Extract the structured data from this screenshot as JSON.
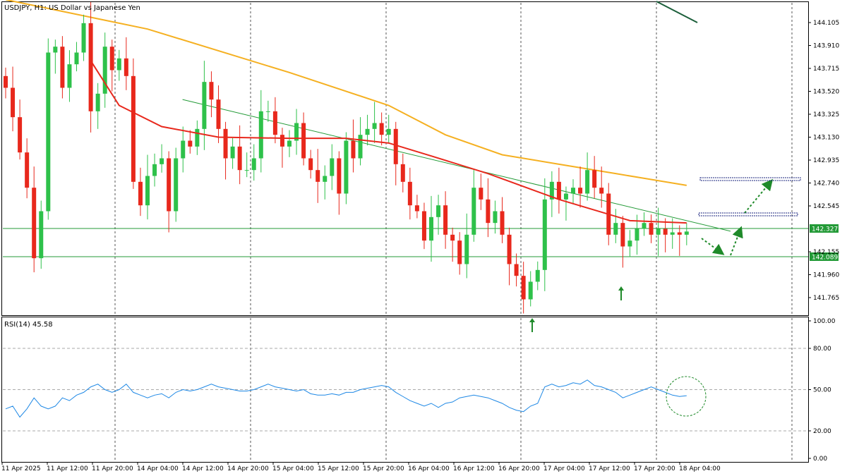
{
  "chart_data": [
    {
      "type": "candlestick",
      "title": "USDJPY, H1:  US Dollar vs Japanese Yen",
      "y_ticks": [
        "144.105",
        "143.910",
        "143.715",
        "143.520",
        "143.325",
        "143.130",
        "142.935",
        "142.740",
        "142.545",
        "142.155",
        "141.960",
        "141.765"
      ],
      "ylim": [
        141.62,
        144.26
      ],
      "x_ticks": [
        "11 Apr 2025",
        "11 Apr 12:00",
        "11 Apr 20:00",
        "14 Apr 04:00",
        "14 Apr 12:00",
        "14 Apr 20:00",
        "15 Apr 04:00",
        "15 Apr 12:00",
        "15 Apr 20:00",
        "16 Apr 04:00",
        "16 Apr 12:00",
        "16 Apr 20:00",
        "17 Apr 04:00",
        "17 Apr 12:00",
        "17 Apr 20:00",
        "18 Apr 04:00"
      ],
      "series_close": [
        143.55,
        143.3,
        143.0,
        142.7,
        142.1,
        142.5,
        143.85,
        143.9,
        143.55,
        143.75,
        143.85,
        144.1,
        143.35,
        143.5,
        143.9,
        143.7,
        143.8,
        143.65,
        142.75,
        142.55,
        142.8,
        142.9,
        142.95,
        142.5,
        142.95,
        143.1,
        143.05,
        143.2,
        143.6,
        143.45,
        143.2,
        142.95,
        143.05,
        142.85,
        142.85,
        142.95,
        143.35,
        143.35,
        143.15,
        143.05,
        143.1,
        143.25,
        142.95,
        142.85,
        142.75,
        142.8,
        142.95,
        142.65,
        143.1,
        142.95,
        143.15,
        143.2,
        143.25,
        143.15,
        143.2,
        142.9,
        142.75,
        142.55,
        142.5,
        142.25,
        142.45,
        142.55,
        142.3,
        142.25,
        142.05,
        142.3,
        142.7,
        142.6,
        142.4,
        142.5,
        142.3,
        142.05,
        141.95,
        141.75,
        141.9,
        142.0,
        142.6,
        142.75,
        142.6,
        142.65,
        142.7,
        142.65,
        142.85,
        142.7,
        142.65,
        142.3,
        142.4,
        142.2,
        142.25,
        142.35,
        142.4,
        142.3,
        142.35,
        142.3,
        142.32,
        142.3,
        142.327
      ],
      "hlines": [
        {
          "label": "142.327"
        },
        {
          "label": "142.089"
        }
      ],
      "ma_red": [
        [
          12,
          143.78
        ],
        [
          16,
          143.4
        ],
        [
          22,
          143.22
        ],
        [
          30,
          143.13
        ],
        [
          40,
          143.12
        ],
        [
          48,
          143.12
        ],
        [
          54,
          143.08
        ],
        [
          60,
          142.97
        ],
        [
          68,
          142.82
        ],
        [
          78,
          142.6
        ],
        [
          88,
          142.42
        ],
        [
          96,
          142.4
        ]
      ],
      "ma_orange": [
        [
          0,
          144.3
        ],
        [
          8,
          144.2
        ],
        [
          20,
          144.05
        ],
        [
          40,
          143.68
        ],
        [
          54,
          143.4
        ],
        [
          62,
          143.15
        ],
        [
          70,
          142.98
        ],
        [
          78,
          142.9
        ],
        [
          86,
          142.82
        ],
        [
          96,
          142.72
        ]
      ],
      "ma_green": [
        [
          0,
          144.3
        ],
        [
          8,
          144.18
        ]
      ],
      "trendline": [
        [
          12,
          143.75
        ],
        [
          96,
          142.33
        ]
      ],
      "colors": {
        "bull": "#2ec14a",
        "bear": "#e8281c",
        "ma_red": "#e8281c",
        "ma_orange": "#f5b021",
        "ma_green": "#1b5e3a",
        "trend": "#239a37",
        "hline": "#239a37",
        "arrow": "#1f8a2a",
        "zone": "#1a237e"
      }
    },
    {
      "type": "line",
      "title": "RSI(14) 45.58",
      "y_ticks": [
        "100.00",
        "80.00",
        "50.00",
        "20.00",
        "0.00"
      ],
      "ylim": [
        0,
        100
      ],
      "levels": [
        80,
        50,
        20
      ],
      "values": [
        36,
        38,
        30,
        36,
        44,
        38,
        36,
        38,
        44,
        42,
        46,
        48,
        52,
        54,
        50,
        48,
        50,
        54,
        48,
        46,
        44,
        46,
        47,
        44,
        48,
        50,
        49,
        50,
        52,
        54,
        52,
        51,
        50,
        49,
        49,
        50,
        52,
        54,
        52,
        51,
        50,
        49,
        50,
        47,
        46,
        46,
        47,
        46,
        48,
        48,
        50,
        51,
        52,
        53,
        52,
        48,
        45,
        42,
        40,
        38,
        40,
        37,
        40,
        41,
        44,
        45,
        46,
        45,
        44,
        42,
        40,
        37,
        35,
        34,
        38,
        40,
        52,
        54,
        52,
        53,
        55,
        54,
        57,
        53,
        52,
        50,
        48,
        44,
        46,
        48,
        50,
        52,
        50,
        48,
        46,
        45,
        45.58
      ],
      "color": "#1e88e5"
    }
  ]
}
